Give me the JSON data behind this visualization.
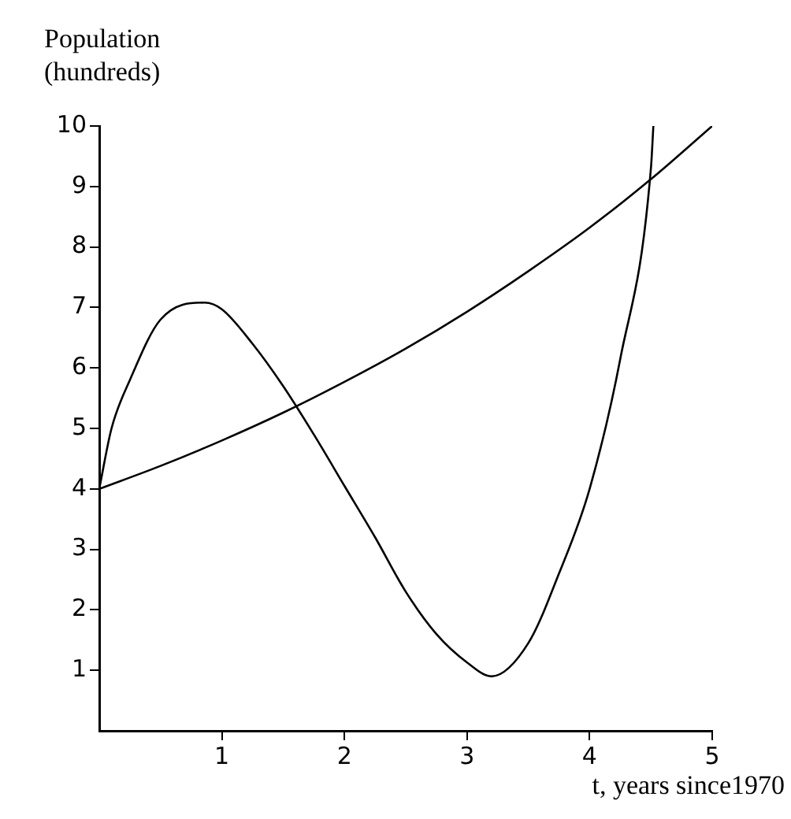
{
  "chart_data": {
    "type": "line",
    "ylabel": "Population (hundreds)",
    "xlabel": "t, years since1970",
    "xlim": [
      0,
      5
    ],
    "xticks": [
      1,
      2,
      3,
      4,
      5
    ],
    "ylim": [
      0,
      10
    ],
    "yticks": [
      1,
      2,
      3,
      4,
      5,
      6,
      7,
      8,
      9,
      10
    ],
    "grid": false,
    "legend": false,
    "marker": "none",
    "line_style": "solid",
    "series": [
      {
        "color": "#000000",
        "x": [
          0,
          0.1,
          0.25,
          0.5,
          0.86,
          1,
          1.25,
          1.5,
          1.75,
          2,
          2.25,
          2.5,
          2.75,
          3,
          3.2,
          3.5,
          3.75,
          4,
          4.25,
          4.5,
          4.52
        ],
        "values": [
          4,
          5,
          5.8,
          6.8,
          7.08,
          6.97,
          6.4,
          5.7,
          4.9,
          4.05,
          3.2,
          2.3,
          1.6,
          1.13,
          0.9,
          1.45,
          2.6,
          4,
          6.15,
          9.3,
          10
        ]
      },
      {
        "color": "#000000",
        "x": [
          0,
          0.5,
          1,
          1.5,
          2,
          2.5,
          3,
          3.5,
          4,
          4.5,
          5
        ],
        "values": [
          4,
          4.38,
          4.8,
          5.26,
          5.77,
          6.32,
          6.93,
          7.6,
          8.32,
          9.12,
          10
        ]
      }
    ]
  }
}
